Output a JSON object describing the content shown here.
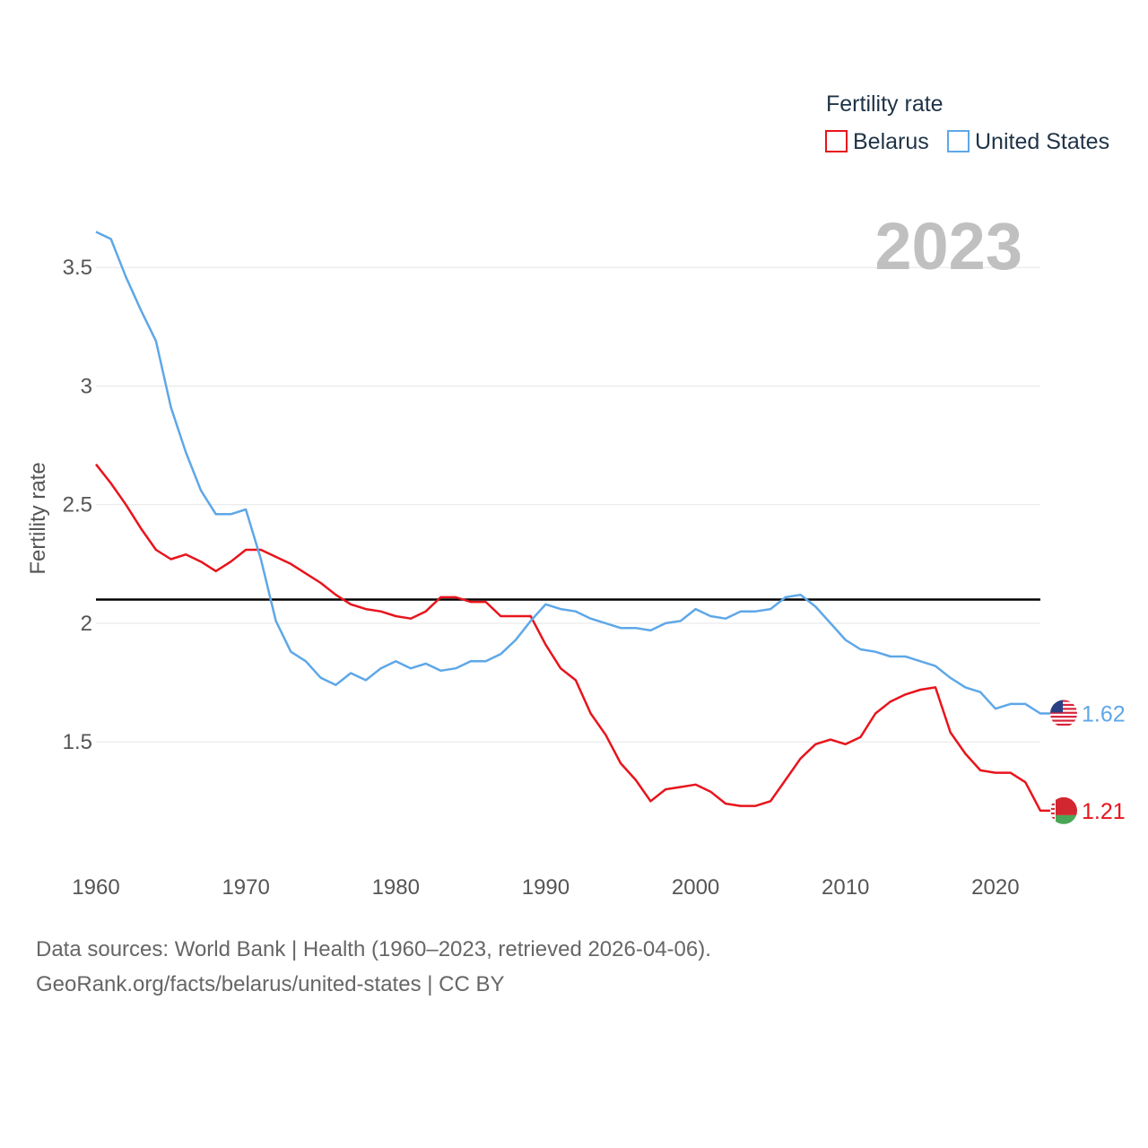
{
  "chart_data": {
    "type": "line",
    "title": "Fertility rate",
    "ylabel": "Fertility rate",
    "xlabel": "",
    "current_year_label": "2023",
    "x": [
      1960,
      1961,
      1962,
      1963,
      1964,
      1965,
      1966,
      1967,
      1968,
      1969,
      1970,
      1971,
      1972,
      1973,
      1974,
      1975,
      1976,
      1977,
      1978,
      1979,
      1980,
      1981,
      1982,
      1983,
      1984,
      1985,
      1986,
      1987,
      1988,
      1989,
      1990,
      1991,
      1992,
      1993,
      1994,
      1995,
      1996,
      1997,
      1998,
      1999,
      2000,
      2001,
      2002,
      2003,
      2004,
      2005,
      2006,
      2007,
      2008,
      2009,
      2010,
      2011,
      2012,
      2013,
      2014,
      2015,
      2016,
      2017,
      2018,
      2019,
      2020,
      2021,
      2022,
      2023
    ],
    "xlim": [
      1960,
      2023
    ],
    "ylim": [
      1.1,
      3.72
    ],
    "x_ticks": [
      "1960",
      "1970",
      "1980",
      "1990",
      "2000",
      "2010",
      "2020"
    ],
    "y_ticks": [
      "1.5",
      "2",
      "2.5",
      "3",
      "3.5"
    ],
    "reference_line": 2.1,
    "series": [
      {
        "name": "Belarus",
        "color": "#e8141c",
        "flag": "belarus-flag",
        "end_label": "1.21",
        "values": [
          2.67,
          2.59,
          2.5,
          2.4,
          2.31,
          2.27,
          2.29,
          2.26,
          2.22,
          2.26,
          2.31,
          2.31,
          2.28,
          2.25,
          2.21,
          2.17,
          2.12,
          2.08,
          2.06,
          2.05,
          2.03,
          2.02,
          2.05,
          2.11,
          2.11,
          2.09,
          2.09,
          2.03,
          2.03,
          2.03,
          1.91,
          1.81,
          1.76,
          1.62,
          1.53,
          1.41,
          1.34,
          1.25,
          1.3,
          1.31,
          1.32,
          1.29,
          1.24,
          1.23,
          1.23,
          1.25,
          1.34,
          1.43,
          1.49,
          1.51,
          1.49,
          1.52,
          1.62,
          1.67,
          1.7,
          1.72,
          1.73,
          1.54,
          1.45,
          1.38,
          1.37,
          1.37,
          1.33,
          1.21
        ]
      },
      {
        "name": "United States",
        "color": "#5ea7e8",
        "flag": "united-states-flag",
        "end_label": "1.62",
        "values": [
          3.65,
          3.62,
          3.46,
          3.32,
          3.19,
          2.91,
          2.72,
          2.56,
          2.46,
          2.46,
          2.48,
          2.27,
          2.01,
          1.88,
          1.84,
          1.77,
          1.74,
          1.79,
          1.76,
          1.81,
          1.84,
          1.81,
          1.83,
          1.8,
          1.81,
          1.84,
          1.84,
          1.87,
          1.93,
          2.01,
          2.08,
          2.06,
          2.05,
          2.02,
          2.0,
          1.98,
          1.98,
          1.97,
          2.0,
          2.01,
          2.06,
          2.03,
          2.02,
          2.05,
          2.05,
          2.06,
          2.11,
          2.12,
          2.07,
          2.0,
          1.93,
          1.89,
          1.88,
          1.86,
          1.86,
          1.84,
          1.82,
          1.77,
          1.73,
          1.71,
          1.64,
          1.66,
          1.66,
          1.62
        ]
      }
    ]
  },
  "source": {
    "line1": "Data sources: World Bank | Health (1960–2023, retrieved 2026-04-06).",
    "line2": "GeoRank.org/facts/belarus/united-states | CC BY"
  }
}
